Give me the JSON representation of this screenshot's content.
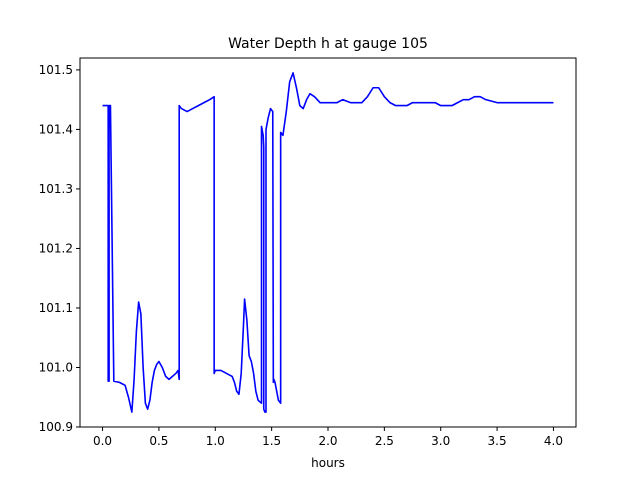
{
  "chart_data": {
    "type": "line",
    "title": "Water Depth h at gauge 105",
    "xlabel": "hours",
    "ylabel": "",
    "xlim": [
      -0.2,
      4.2
    ],
    "ylim": [
      100.9,
      101.52
    ],
    "xticks": [
      0.0,
      0.5,
      1.0,
      1.5,
      2.0,
      2.5,
      3.0,
      3.5,
      4.0
    ],
    "xtick_labels": [
      "0.0",
      "0.5",
      "1.0",
      "1.5",
      "2.0",
      "2.5",
      "3.0",
      "3.5",
      "4.0"
    ],
    "yticks": [
      100.9,
      101.0,
      101.1,
      101.2,
      101.3,
      101.4,
      101.5
    ],
    "ytick_labels": [
      "100.9",
      "101.0",
      "101.1",
      "101.2",
      "101.3",
      "101.4",
      "101.5"
    ],
    "grid": false,
    "series": [
      {
        "color": "#0000ff",
        "x": [
          0.0,
          0.05,
          0.05,
          0.058,
          0.058,
          0.07,
          0.1,
          0.15,
          0.2,
          0.23,
          0.26,
          0.28,
          0.3,
          0.32,
          0.34,
          0.36,
          0.38,
          0.4,
          0.42,
          0.44,
          0.46,
          0.48,
          0.5,
          0.53,
          0.56,
          0.59,
          0.62,
          0.65,
          0.67,
          0.68,
          0.68,
          0.7,
          0.75,
          0.8,
          0.85,
          0.9,
          0.95,
          0.99,
          0.99,
          1.0,
          1.05,
          1.1,
          1.15,
          1.17,
          1.19,
          1.21,
          1.23,
          1.25,
          1.26,
          1.28,
          1.3,
          1.32,
          1.34,
          1.36,
          1.38,
          1.41,
          1.41,
          1.425,
          1.43,
          1.43,
          1.44,
          1.45,
          1.45,
          1.47,
          1.49,
          1.51,
          1.515,
          1.52,
          1.53,
          1.545,
          1.56,
          1.58,
          1.58,
          1.6,
          1.63,
          1.66,
          1.69,
          1.72,
          1.75,
          1.78,
          1.81,
          1.84,
          1.88,
          1.93,
          1.98,
          2.03,
          2.08,
          2.13,
          2.2,
          2.3,
          2.35,
          2.4,
          2.45,
          2.5,
          2.55,
          2.6,
          2.65,
          2.7,
          2.75,
          2.8,
          2.85,
          2.9,
          2.95,
          3.0,
          3.05,
          3.1,
          3.15,
          3.2,
          3.25,
          3.3,
          3.35,
          3.4,
          3.5,
          3.6,
          3.7,
          3.8,
          3.9,
          4.0
        ],
        "y": [
          101.44,
          101.44,
          100.977,
          100.977,
          101.44,
          101.44,
          100.977,
          100.975,
          100.97,
          100.95,
          100.925,
          100.98,
          101.06,
          101.11,
          101.09,
          101.0,
          100.94,
          100.93,
          100.945,
          100.975,
          100.995,
          101.005,
          101.01,
          101.0,
          100.985,
          100.98,
          100.985,
          100.99,
          100.995,
          100.98,
          101.44,
          101.435,
          101.43,
          101.435,
          101.44,
          101.445,
          101.45,
          101.455,
          100.99,
          100.995,
          100.995,
          100.99,
          100.985,
          100.975,
          100.96,
          100.955,
          100.99,
          101.07,
          101.115,
          101.08,
          101.02,
          101.01,
          100.99,
          100.96,
          100.945,
          100.94,
          101.405,
          101.39,
          101.37,
          100.93,
          100.925,
          100.925,
          101.4,
          101.42,
          101.435,
          101.43,
          100.975,
          100.98,
          100.975,
          100.96,
          100.945,
          100.94,
          101.395,
          101.39,
          101.43,
          101.48,
          101.495,
          101.47,
          101.44,
          101.435,
          101.45,
          101.46,
          101.455,
          101.445,
          101.445,
          101.445,
          101.445,
          101.45,
          101.445,
          101.445,
          101.455,
          101.47,
          101.47,
          101.455,
          101.445,
          101.44,
          101.44,
          101.44,
          101.445,
          101.445,
          101.445,
          101.445,
          101.445,
          101.44,
          101.44,
          101.44,
          101.445,
          101.45,
          101.45,
          101.455,
          101.455,
          101.45,
          101.445,
          101.445,
          101.445,
          101.445,
          101.445,
          101.445
        ]
      }
    ]
  }
}
